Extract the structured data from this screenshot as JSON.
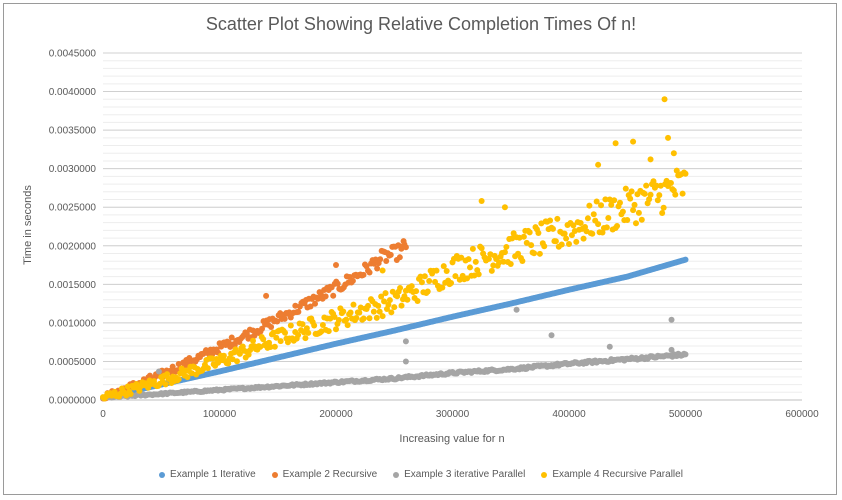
{
  "chart_data": {
    "type": "scatter",
    "title": "Scatter Plot Showing Relative Completion Times Of n!",
    "xlabel": "Increasing value for n",
    "ylabel": "Time in seconds",
    "xlim": [
      0,
      600000
    ],
    "ylim": [
      0,
      0.0045
    ],
    "x_ticks": [
      "0",
      "100000",
      "200000",
      "300000",
      "400000",
      "500000",
      "600000"
    ],
    "y_ticks": [
      "0.0000000",
      "0.0005000",
      "0.0010000",
      "0.0015000",
      "0.0020000",
      "0.0025000",
      "0.0030000",
      "0.0035000",
      "0.0040000",
      "0.0045000"
    ],
    "grid": true,
    "legend_position": "bottom",
    "series": [
      {
        "name": "Example 1 Iterative",
        "color": "#5b9bd5",
        "x": [
          0,
          50000,
          100000,
          150000,
          200000,
          250000,
          300000,
          350000,
          400000,
          450000,
          500000
        ],
        "y": [
          3e-05,
          0.0002,
          0.00037,
          0.00055,
          0.00073,
          0.0009,
          0.00108,
          0.00125,
          0.00143,
          0.0016,
          0.00182
        ]
      },
      {
        "name": "Example 2 Recursive",
        "color": "#ed7d31",
        "x": [
          0,
          25000,
          50000,
          75000,
          100000,
          125000,
          150000,
          175000,
          200000,
          225000,
          240000,
          250000,
          260000
        ],
        "y": [
          3e-05,
          0.00018,
          0.00033,
          0.0005,
          0.00068,
          0.00086,
          0.00105,
          0.00125,
          0.00145,
          0.00168,
          0.00185,
          0.0019,
          0.00195
        ],
        "outliers": [
          [
            140000,
            0.00135
          ],
          [
            200000,
            0.00175
          ],
          [
            258000,
            0.00206
          ]
        ]
      },
      {
        "name": "Example 3 iterative Parallel",
        "color": "#a5a5a5",
        "x": [
          0,
          50000,
          100000,
          150000,
          200000,
          250000,
          300000,
          350000,
          400000,
          450000,
          500000
        ],
        "y": [
          3e-05,
          8e-05,
          0.00013,
          0.00018,
          0.00023,
          0.00028,
          0.00035,
          0.0004,
          0.00047,
          0.00053,
          0.00059
        ],
        "outliers": [
          [
            48000,
            0.00037
          ],
          [
            260000,
            0.00076
          ],
          [
            260000,
            0.0005
          ],
          [
            355000,
            0.00117
          ],
          [
            385000,
            0.00084
          ],
          [
            435000,
            0.00069
          ],
          [
            488000,
            0.00104
          ],
          [
            488000,
            0.00065
          ]
        ]
      },
      {
        "name": "Example 4 Recursive Parallel",
        "color": "#ffc000",
        "x": [
          0,
          50000,
          100000,
          150000,
          200000,
          250000,
          260000,
          300000,
          350000,
          400000,
          450000,
          500000
        ],
        "y": [
          3e-05,
          0.00025,
          0.0005,
          0.0008,
          0.00105,
          0.00128,
          0.00135,
          0.0017,
          0.00195,
          0.0022,
          0.0025,
          0.0028
        ],
        "outliers": [
          [
            240000,
            0.00168
          ],
          [
            325000,
            0.00258
          ],
          [
            345000,
            0.0025
          ],
          [
            425000,
            0.00305
          ],
          [
            440000,
            0.00333
          ],
          [
            455000,
            0.00335
          ],
          [
            470000,
            0.00312
          ],
          [
            482000,
            0.0039
          ],
          [
            485000,
            0.0034
          ],
          [
            490000,
            0.0032
          ]
        ]
      }
    ]
  }
}
